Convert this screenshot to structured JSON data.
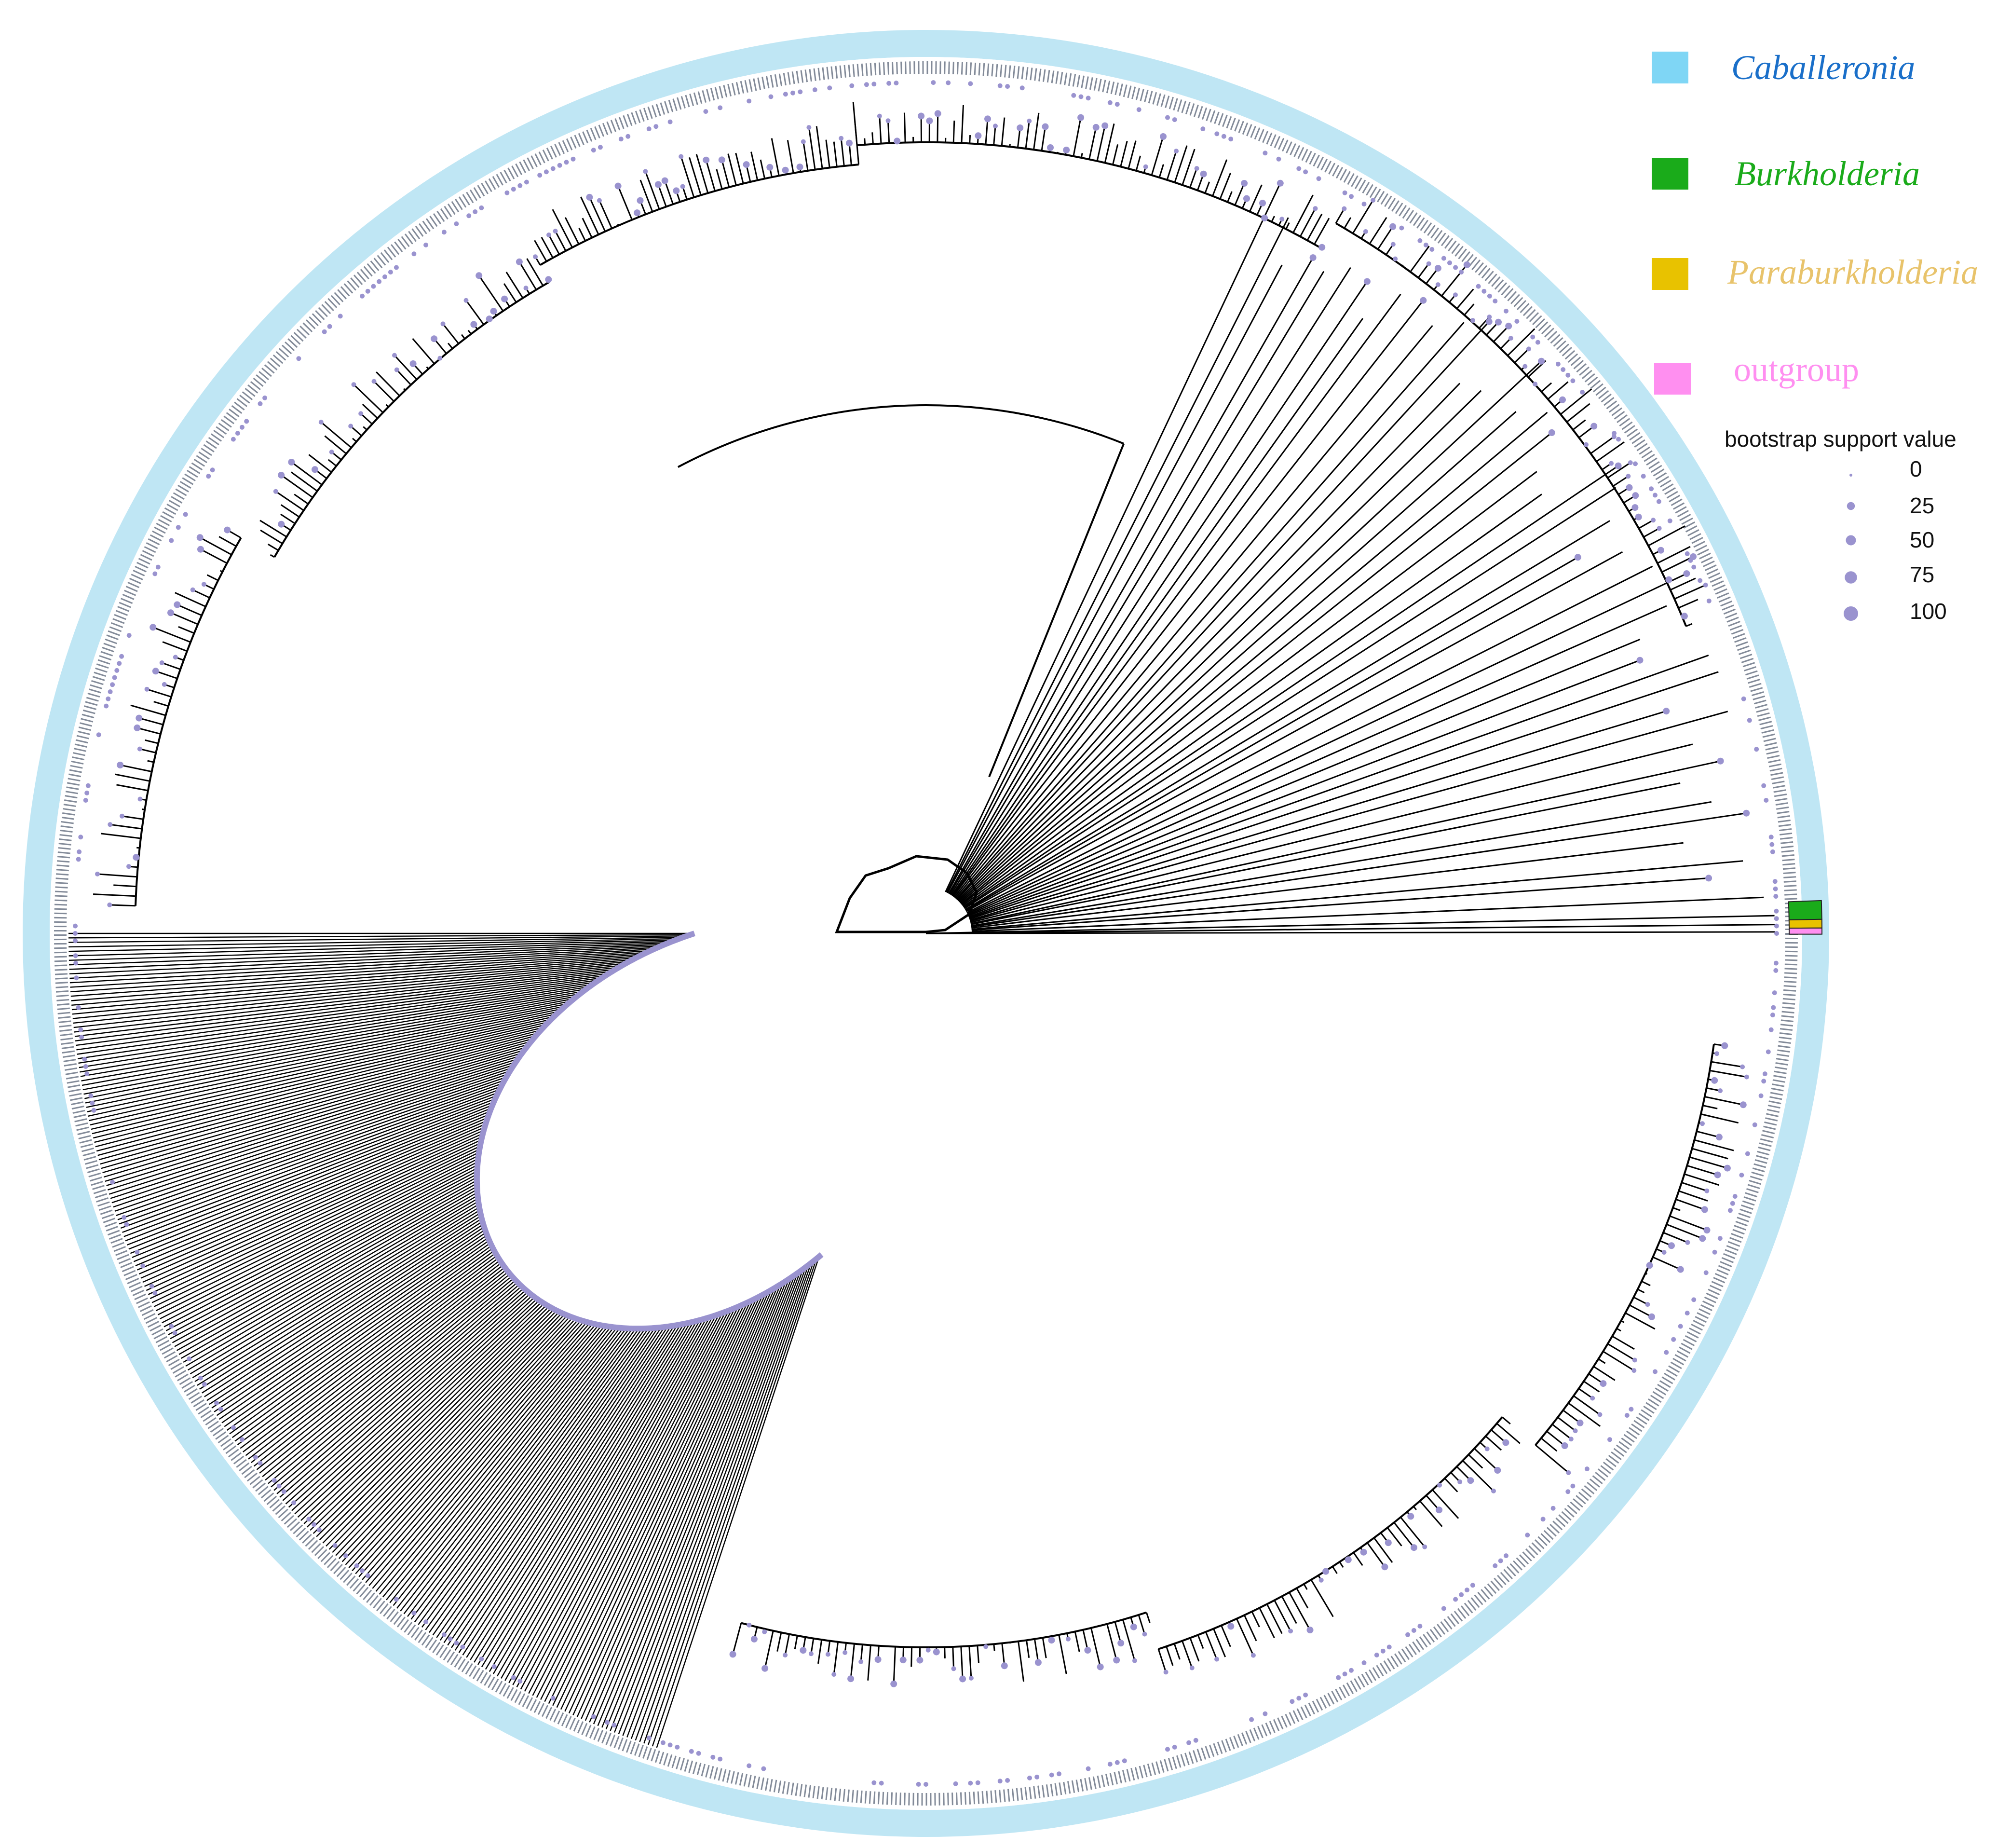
{
  "figure": {
    "type": "circular-phylogenetic-tree",
    "colors": {
      "caballeronia": "#7fd6f5",
      "caballeronia_ring": "#bfe6f4",
      "burkholderia": "#1aab1a",
      "paraburkholderia": "#e8c200",
      "outgroup": "#ff8ff0",
      "bootstrap_dot": "#9a93cf",
      "branch": "#000000"
    }
  },
  "legend": {
    "clades": [
      {
        "label": "Caballeronia",
        "color": "#7fd6f5",
        "text_color": "#1a6fc9",
        "italic": true
      },
      {
        "label": "Burkholderia",
        "color": "#1aab1a",
        "text_color": "#1aab1a",
        "italic": true
      },
      {
        "label": "Paraburkholderia",
        "color": "#e8c200",
        "text_color": "#e8c36b",
        "italic": true
      },
      {
        "label": "outgroup",
        "color": "#ff8ff0",
        "text_color": "#ff8ff0",
        "italic": false
      }
    ],
    "bootstrap": {
      "title": "bootstrap support value",
      "values": [
        "0",
        "25",
        "50",
        "75",
        "100"
      ],
      "support_levels": [
        0,
        25,
        50,
        75,
        100
      ]
    }
  }
}
